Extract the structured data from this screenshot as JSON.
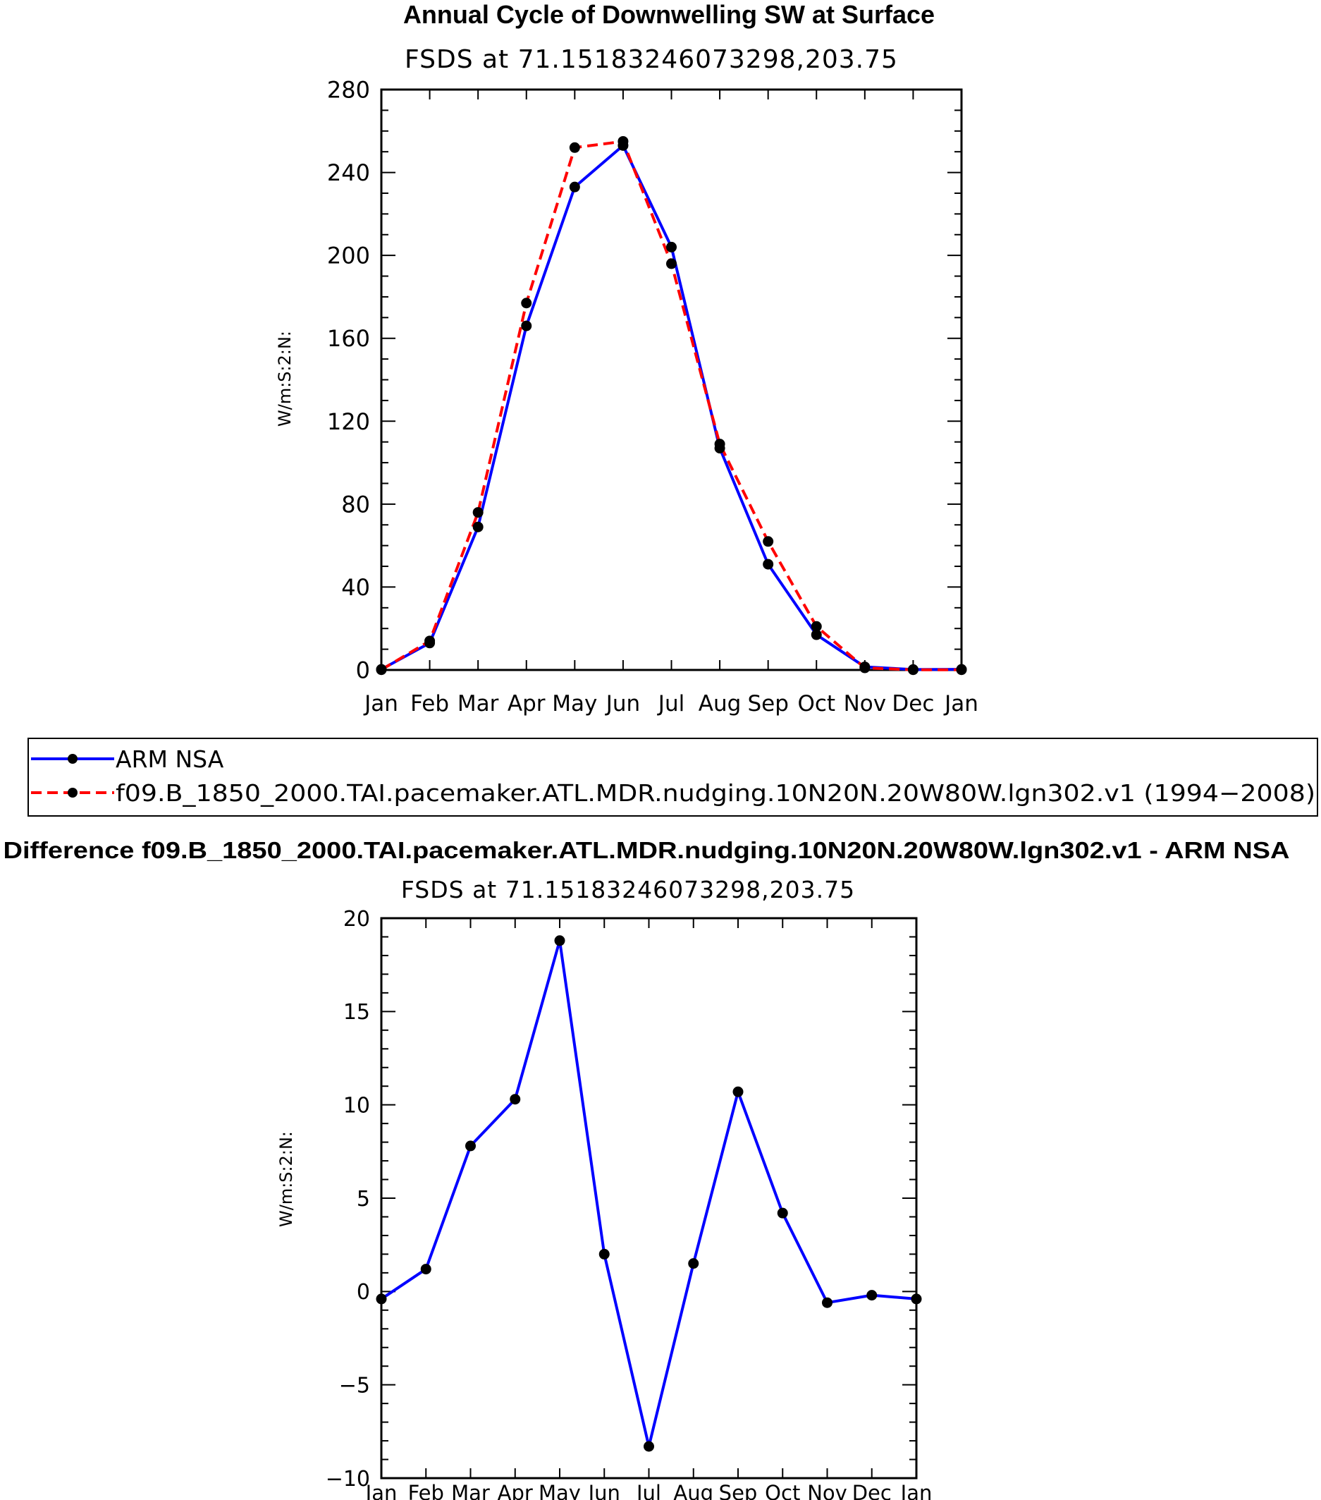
{
  "chart_data": [
    {
      "type": "line",
      "title": "Annual Cycle of Downwelling SW at Surface",
      "subtitle": "FSDS at 71.15183246073298,203.75",
      "ylabel": "W/m:S:2:N:",
      "xlabel": "",
      "categories": [
        "Jan",
        "Feb",
        "Mar",
        "Apr",
        "May",
        "Jun",
        "Jul",
        "Aug",
        "Sep",
        "Oct",
        "Nov",
        "Dec",
        "Jan"
      ],
      "yticks": [
        0,
        40,
        80,
        120,
        160,
        200,
        240,
        280
      ],
      "ylim": [
        0,
        280
      ],
      "grid": false,
      "series": [
        {
          "name": "ARM NSA",
          "color": "#0000ff",
          "dash": "solid",
          "values": [
            0.3,
            13,
            69,
            166,
            233,
            253,
            204,
            107,
            51,
            17,
            1.5,
            0.2,
            0.3
          ]
        },
        {
          "name": "f09.B_1850_2000.TAI.pacemaker.ATL.MDR.nudging.10N20N.20W80W.lgn302.v1  (1994−2008)",
          "color": "#ff0000",
          "dash": "dashed",
          "values": [
            0.1,
            14,
            76,
            177,
            252,
            255,
            196,
            109,
            62,
            21,
            1.0,
            0.1,
            0.1
          ]
        }
      ],
      "legend": {
        "placement": "below",
        "entries": [
          "ARM NSA",
          "f09.B_1850_2000.TAI.pacemaker.ATL.MDR.nudging.10N20N.20W80W.lgn302.v1  (1994−2008)"
        ]
      }
    },
    {
      "type": "line",
      "title": "Difference f09.B_1850_2000.TAI.pacemaker.ATL.MDR.nudging.10N20N.20W80W.lgn302.v1 - ARM NSA",
      "subtitle": "FSDS at 71.15183246073298,203.75",
      "ylabel": "W/m:S:2:N:",
      "xlabel": "",
      "categories": [
        "Jan",
        "Feb",
        "Mar",
        "Apr",
        "May",
        "Jun",
        "Jul",
        "Aug",
        "Sep",
        "Oct",
        "Nov",
        "Dec",
        "Jan"
      ],
      "yticks": [
        -10,
        -5,
        0,
        5,
        10,
        15,
        20
      ],
      "ytick_labels": [
        "−10",
        "−5",
        "0",
        "5",
        "10",
        "15",
        "20"
      ],
      "ylim": [
        -10,
        20
      ],
      "grid": false,
      "series": [
        {
          "color": "#0000ff",
          "dash": "solid",
          "values": [
            -0.4,
            1.2,
            7.8,
            10.3,
            18.8,
            2.0,
            -8.3,
            1.5,
            10.7,
            4.2,
            -0.6,
            -0.2,
            -0.4
          ]
        }
      ]
    }
  ]
}
